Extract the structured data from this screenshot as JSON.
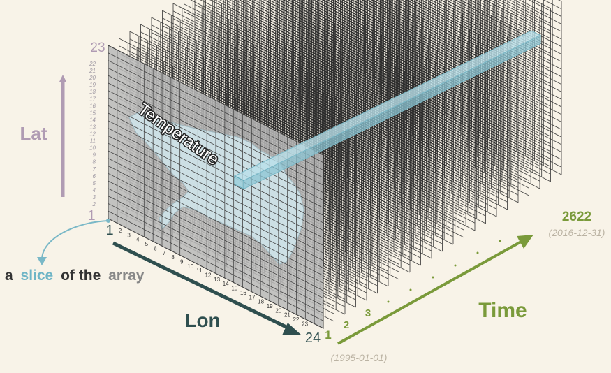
{
  "title_words": {
    "prefix": "a",
    "slice": "slice",
    "middle": "of the",
    "array": "array"
  },
  "variable_label": "Temperature",
  "axes": {
    "lat": {
      "label": "Lat",
      "min": "1",
      "max": "23",
      "ticks": [
        "2",
        "3",
        "4",
        "5",
        "6",
        "7",
        "8",
        "9",
        "10",
        "11",
        "12",
        "13",
        "14",
        "15",
        "16",
        "17",
        "18",
        "19",
        "20",
        "21",
        "22"
      ]
    },
    "lon": {
      "label": "Lon",
      "min": "1",
      "max": "24",
      "ticks": [
        "2",
        "3",
        "4",
        "5",
        "6",
        "7",
        "8",
        "9",
        "10",
        "11",
        "12",
        "13",
        "14",
        "15",
        "16",
        "17",
        "18",
        "19",
        "20",
        "21",
        "22",
        "23"
      ]
    },
    "time": {
      "label": "Time",
      "start_index": "1",
      "second_index": "2",
      "third_index": "3",
      "end_index": "2622",
      "start_date": "(1995-01-01)",
      "end_date": "(2016-12-31)"
    }
  },
  "colors": {
    "background": "#f8f3e8",
    "lat": "#b09bb3",
    "lon": "#2f4f4f",
    "time": "#7a9a3a",
    "slice": "#7ab8c7",
    "grid": "#3a3a3a",
    "panel": "#b8b8b8"
  }
}
